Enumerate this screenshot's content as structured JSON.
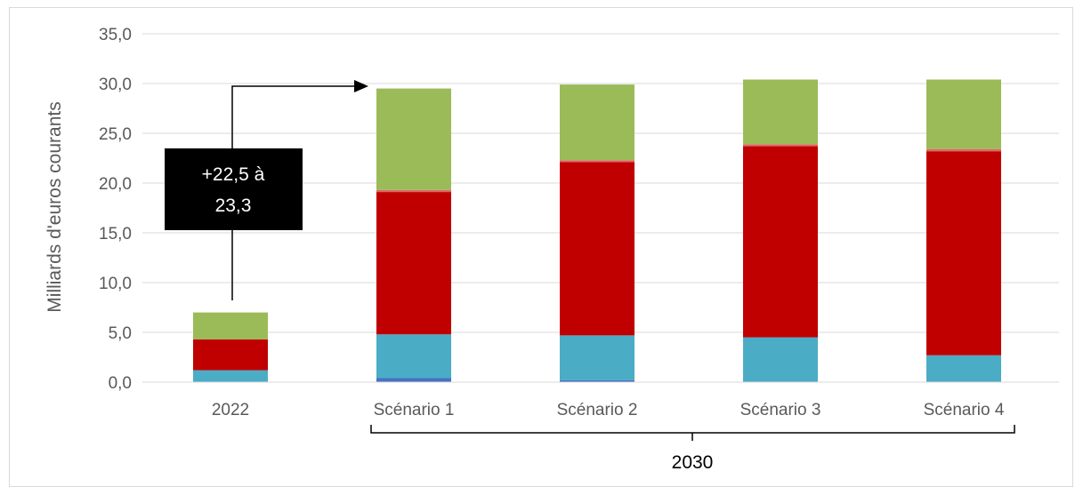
{
  "chart_data": {
    "type": "bar",
    "stacked": true,
    "title": "",
    "xlabel": "",
    "ylabel": "Milliards d'euros courants",
    "ylim": [
      0,
      35
    ],
    "yticks": [
      "0,0",
      "5,0",
      "10,0",
      "15,0",
      "20,0",
      "25,0",
      "30,0",
      "35,0"
    ],
    "categories": [
      "2022",
      "Scénario 1",
      "Scénario 2",
      "Scénario 3",
      "Scénario 4"
    ],
    "grid": true,
    "legend": "none",
    "series": [
      {
        "color": "#4472c4",
        "values": [
          0.0,
          0.4,
          0.2,
          0.0,
          0.0
        ]
      },
      {
        "color": "#4bacc6",
        "values": [
          1.2,
          4.4,
          4.5,
          4.5,
          2.7
        ]
      },
      {
        "color": "#c00000",
        "values": [
          3.1,
          14.3,
          17.4,
          19.2,
          20.5
        ]
      },
      {
        "color": "#e06666",
        "values": [
          0.0,
          0.2,
          0.2,
          0.2,
          0.2
        ]
      },
      {
        "color": "#9bbb59",
        "values": [
          2.7,
          10.2,
          7.6,
          6.5,
          7.0
        ]
      }
    ],
    "group_label": "2030",
    "annotation": "+22,5 à 23,3"
  },
  "annotation_lines": [
    "+22,5 à",
    "23,3"
  ]
}
